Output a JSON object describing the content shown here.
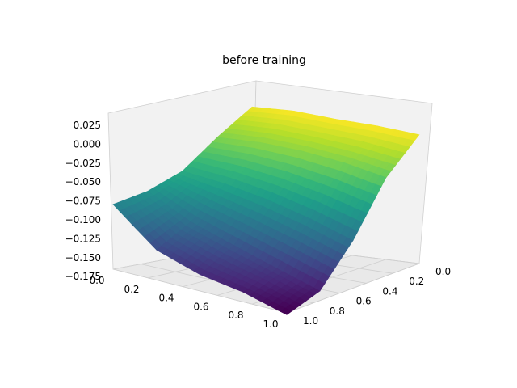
{
  "chart_data": {
    "type": "surface3d",
    "title": "before training",
    "colormap": "viridis",
    "grid": true,
    "x_ticks": [
      "0.0",
      "0.2",
      "0.4",
      "0.6",
      "0.8",
      "1.0"
    ],
    "y_ticks": [
      "0.0",
      "0.2",
      "0.4",
      "0.6",
      "0.8",
      "1.0"
    ],
    "z_ticks": [
      "0.025",
      "0.000",
      "−0.025",
      "−0.050",
      "−0.075",
      "−0.100",
      "−0.125",
      "−0.150",
      "−0.175"
    ],
    "xlim": [
      0,
      1
    ],
    "ylim": [
      0,
      1
    ],
    "zlim": [
      -0.175,
      0.03
    ],
    "x": [
      0.0,
      0.25,
      0.5,
      0.75,
      1.0
    ],
    "y": [
      0.0,
      0.25,
      0.5,
      0.75,
      1.0
    ],
    "z_values": [
      [
        0.025,
        0.03,
        0.029,
        0.03,
        0.028
      ],
      [
        -0.01,
        -0.005,
        -0.005,
        -0.01,
        -0.02
      ],
      [
        -0.05,
        -0.055,
        -0.065,
        -0.08,
        -0.1
      ],
      [
        -0.07,
        -0.1,
        -0.12,
        -0.14,
        -0.16
      ],
      [
        -0.08,
        -0.13,
        -0.15,
        -0.16,
        -0.178
      ]
    ]
  }
}
